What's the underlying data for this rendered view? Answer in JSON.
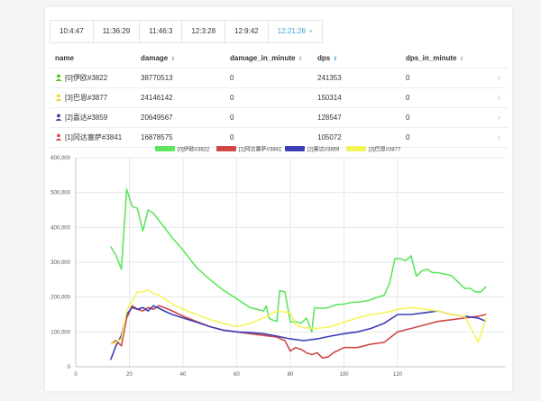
{
  "tabs": [
    {
      "label": "10:4:47"
    },
    {
      "label": "11:36:29"
    },
    {
      "label": "11:46:3"
    },
    {
      "label": "12:3:28"
    },
    {
      "label": "12:9:42"
    },
    {
      "label": "12:21:28",
      "active": true,
      "close": "×"
    }
  ],
  "table": {
    "headers": {
      "name": "name",
      "damage": "damage",
      "damage_in_minute": "damage_in_minute",
      "dps": "dps",
      "dps_in_minute": "dps_in_minute"
    },
    "sort_glyph": "⇕",
    "rows": [
      {
        "name": "[0]伊欧#3822",
        "damage": "38770513",
        "damage_in_minute": "0",
        "dps": "241353",
        "dps_in_minute": "0",
        "icon_color": "#52c41a"
      },
      {
        "name": "[3]巴恩#3877",
        "damage": "24146142",
        "damage_in_minute": "0",
        "dps": "150314",
        "dps_in_minute": "0",
        "icon_color": "#f5d23a"
      },
      {
        "name": "[2]喜达#3859",
        "damage": "20649567",
        "damage_in_minute": "0",
        "dps": "128547",
        "dps_in_minute": "0",
        "icon_color": "#3a3f9e"
      },
      {
        "name": "[1]冈达塞萨#3841",
        "damage": "16878575",
        "damage_in_minute": "0",
        "dps": "105072",
        "dps_in_minute": "0",
        "icon_color": "#d9534f"
      }
    ],
    "chevron": "›"
  },
  "chart_data": {
    "type": "line",
    "title": "",
    "xlabel": "",
    "ylabel": "",
    "xlim": [
      0,
      160
    ],
    "ylim": [
      0,
      600000
    ],
    "x_ticks": [
      0,
      20,
      40,
      60,
      80,
      100,
      120
    ],
    "y_ticks": [
      0,
      100000,
      200000,
      300000,
      400000,
      500000,
      600000
    ],
    "y_tick_labels": [
      "0",
      "100,000",
      "200,000",
      "300,000",
      "400,000",
      "500,000",
      "600,000"
    ],
    "grid": true,
    "legend_position": "top",
    "series": [
      {
        "name": "[0]伊欧#3822",
        "color": "#5ee65e",
        "x": [
          13,
          15,
          17,
          19,
          21,
          23,
          25,
          27,
          29,
          31,
          33,
          36,
          40,
          45,
          50,
          55,
          60,
          65,
          70,
          71,
          72,
          73,
          75,
          76,
          78,
          80,
          82,
          84,
          86,
          88,
          89,
          91,
          93,
          95,
          97,
          100,
          103,
          106,
          109,
          112,
          115,
          117,
          119,
          121,
          123,
          125,
          127,
          129,
          131,
          133,
          135,
          140,
          145,
          147,
          149,
          151,
          153
        ],
        "y": [
          345000,
          320000,
          280000,
          510000,
          460000,
          455000,
          390000,
          450000,
          440000,
          420000,
          400000,
          370000,
          335000,
          285000,
          250000,
          220000,
          195000,
          170000,
          160000,
          175000,
          140000,
          135000,
          130000,
          218000,
          215000,
          128000,
          130000,
          125000,
          140000,
          100000,
          170000,
          168000,
          168000,
          172000,
          178000,
          180000,
          185000,
          186000,
          190000,
          198000,
          205000,
          240000,
          310000,
          310000,
          305000,
          318000,
          260000,
          275000,
          280000,
          270000,
          270000,
          262000,
          225000,
          225000,
          215000,
          215000,
          230000
        ]
      },
      {
        "name": "[1]冈达塞萨#3841",
        "color": "#d04848",
        "x": [
          13,
          15,
          17,
          19,
          21,
          23,
          25,
          27,
          29,
          31,
          33,
          36,
          40,
          45,
          50,
          55,
          60,
          65,
          70,
          75,
          78,
          80,
          82,
          84,
          86,
          88,
          90,
          92,
          94,
          96,
          100,
          105,
          110,
          115,
          120,
          125,
          130,
          135,
          140,
          145,
          150,
          153
        ],
        "y": [
          65000,
          75000,
          60000,
          140000,
          175000,
          165000,
          160000,
          170000,
          165000,
          175000,
          170000,
          160000,
          145000,
          130000,
          115000,
          105000,
          100000,
          95000,
          90000,
          85000,
          75000,
          45000,
          55000,
          50000,
          40000,
          35000,
          40000,
          25000,
          28000,
          40000,
          55000,
          55000,
          65000,
          70000,
          100000,
          110000,
          120000,
          130000,
          135000,
          140000,
          145000,
          150000
        ]
      },
      {
        "name": "[2]喜达#3859",
        "color": "#3d3db8",
        "x": [
          13,
          15,
          17,
          19,
          21,
          23,
          25,
          27,
          29,
          31,
          33,
          36,
          40,
          45,
          50,
          55,
          60,
          65,
          70,
          75,
          80,
          85,
          90,
          95,
          100,
          105,
          110,
          115,
          120,
          125,
          130,
          135,
          140,
          145,
          150,
          153
        ],
        "y": [
          20000,
          60000,
          90000,
          150000,
          170000,
          165000,
          170000,
          160000,
          175000,
          168000,
          160000,
          150000,
          140000,
          128000,
          115000,
          105000,
          100000,
          98000,
          95000,
          88000,
          80000,
          75000,
          80000,
          88000,
          95000,
          100000,
          110000,
          125000,
          150000,
          150000,
          155000,
          160000,
          150000,
          145000,
          140000,
          130000
        ]
      },
      {
        "name": "[3]巴恩#3877",
        "color": "#f5f55a",
        "x": [
          13,
          15,
          17,
          19,
          21,
          23,
          25,
          27,
          29,
          31,
          33,
          36,
          40,
          45,
          50,
          55,
          60,
          65,
          70,
          75,
          80,
          82,
          85,
          90,
          95,
          100,
          105,
          110,
          115,
          120,
          125,
          130,
          135,
          140,
          145,
          150,
          153
        ],
        "y": [
          65000,
          70000,
          80000,
          160000,
          190000,
          215000,
          215000,
          220000,
          210000,
          205000,
          195000,
          180000,
          165000,
          150000,
          135000,
          125000,
          115000,
          125000,
          140000,
          160000,
          155000,
          120000,
          112000,
          110000,
          115000,
          128000,
          140000,
          150000,
          155000,
          165000,
          170000,
          165000,
          160000,
          150000,
          145000,
          70000,
          140000
        ]
      }
    ]
  }
}
